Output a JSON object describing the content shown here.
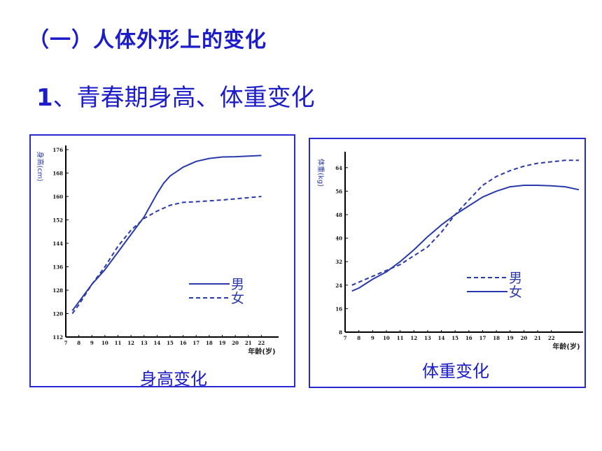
{
  "heading": "（一）人体外形上的变化",
  "subheading": {
    "number": "1",
    "text": "、青春期身高、体重变化"
  },
  "colors": {
    "text": "#1c1cc8",
    "border": "#2a2ad0",
    "plot": "#2a3aa8"
  },
  "chart_data": [
    {
      "type": "line",
      "title": "身高变化",
      "ylabel": "身高(cm)",
      "xlabel": "年龄(岁)",
      "x_ticks": [
        "7",
        "8",
        "9",
        "10",
        "11",
        "12",
        "13",
        "14",
        "15",
        "16",
        "17",
        "18",
        "19",
        "20",
        "21",
        "22"
      ],
      "y_ticks": [
        "112",
        "120",
        "128",
        "136",
        "144",
        "152",
        "160",
        "168",
        "176"
      ],
      "xlim": [
        7,
        23
      ],
      "ylim": [
        112,
        176
      ],
      "legend": [
        "男",
        "女"
      ],
      "legend_position": "right",
      "series": [
        {
          "name": "男",
          "style": "solid",
          "x": [
            7.5,
            8,
            9,
            10,
            11,
            12,
            13,
            13.5,
            14,
            14.5,
            15,
            16,
            17,
            18,
            19,
            20,
            21,
            22
          ],
          "y": [
            121,
            124,
            130,
            135,
            141,
            147,
            153,
            157,
            161,
            164.5,
            167,
            170,
            172,
            173,
            173.5,
            173.6,
            173.8,
            174
          ]
        },
        {
          "name": "女",
          "style": "dashed",
          "x": [
            7.5,
            8,
            9,
            10,
            11,
            12,
            13,
            14,
            15,
            16,
            17,
            18,
            19,
            20,
            21,
            22
          ],
          "y": [
            120,
            123,
            130,
            136,
            143,
            148.5,
            152.5,
            155,
            157,
            158,
            158.2,
            158.5,
            158.8,
            159.2,
            159.6,
            160
          ]
        }
      ]
    },
    {
      "type": "line",
      "title": "体重变化",
      "ylabel": "体重(kg)",
      "xlabel": "年龄(岁)",
      "x_ticks": [
        "7",
        "8",
        "9",
        "10",
        "11",
        "12",
        "13",
        "14",
        "15",
        "16",
        "17",
        "18",
        "19",
        "20",
        "21",
        "22"
      ],
      "y_ticks": [
        "8",
        "16",
        "24",
        "32",
        "40",
        "48",
        "56",
        "64"
      ],
      "xlim": [
        7,
        24
      ],
      "ylim": [
        8,
        68
      ],
      "legend": [
        "男",
        "女"
      ],
      "legend_position": "right",
      "series": [
        {
          "name": "男",
          "style": "dashed",
          "x": [
            7.5,
            8,
            9,
            10,
            11,
            12,
            13,
            14,
            15,
            16,
            17,
            18,
            19,
            20,
            21,
            22,
            23,
            24
          ],
          "y": [
            24,
            25,
            27,
            29,
            31,
            34,
            37,
            42,
            48,
            53,
            58,
            61,
            63,
            64.5,
            65.5,
            66,
            66.5,
            66.5
          ]
        },
        {
          "name": "女",
          "style": "solid",
          "x": [
            7.5,
            8,
            9,
            10,
            11,
            12,
            13,
            14,
            15,
            16,
            17,
            18,
            19,
            20,
            21,
            22,
            23,
            24
          ],
          "y": [
            22,
            23,
            26,
            28.5,
            32,
            36,
            40.5,
            44.5,
            48,
            51,
            54,
            56,
            57.5,
            58,
            58,
            57.8,
            57.5,
            56.5
          ]
        }
      ]
    }
  ]
}
